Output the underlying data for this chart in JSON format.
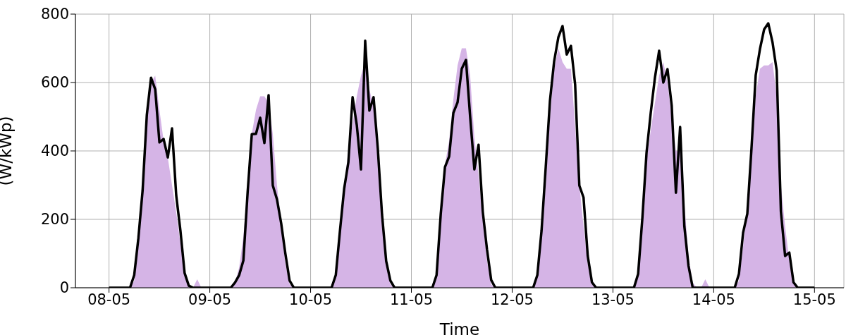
{
  "chart_data": {
    "type": "line",
    "xlabel": "Time",
    "ylabel": "(W/kWp)",
    "xlim": [
      "--05-07T16:00",
      "--05-15T07:00"
    ],
    "ylim": [
      0,
      800
    ],
    "xticks": [
      {
        "value": "--05-08",
        "label": "08-05"
      },
      {
        "value": "--05-09",
        "label": "09-05"
      },
      {
        "value": "--05-10",
        "label": "10-05"
      },
      {
        "value": "--05-11",
        "label": "11-05"
      },
      {
        "value": "--05-12",
        "label": "12-05"
      },
      {
        "value": "--05-13",
        "label": "13-05"
      },
      {
        "value": "--05-14",
        "label": "14-05"
      },
      {
        "value": "--05-15",
        "label": "15-05"
      }
    ],
    "yticks": [
      0,
      200,
      400,
      600,
      800
    ],
    "grid": true,
    "series": [
      {
        "type": "area",
        "color": "#d5b4e6",
        "x": [
          "--05-08T00:00",
          "--05-08T05:00",
          "--05-08T06:00",
          "--05-08T07:00",
          "--05-08T08:00",
          "--05-08T09:00",
          "--05-08T10:00",
          "--05-08T11:00",
          "--05-08T12:00",
          "--05-08T13:00",
          "--05-08T14:00",
          "--05-08T15:00",
          "--05-08T16:00",
          "--05-08T17:00",
          "--05-08T18:00",
          "--05-08T19:00",
          "--05-08T20:00",
          "--05-08T21:00",
          "--05-08T22:00",
          "--05-09T05:00",
          "--05-09T06:00",
          "--05-09T07:00",
          "--05-09T08:00",
          "--05-09T09:00",
          "--05-09T10:00",
          "--05-09T11:00",
          "--05-09T12:00",
          "--05-09T13:00",
          "--05-09T14:00",
          "--05-09T15:00",
          "--05-09T16:00",
          "--05-09T17:00",
          "--05-09T18:00",
          "--05-09T19:00",
          "--05-09T20:00",
          "--05-10T05:00",
          "--05-10T06:00",
          "--05-10T07:00",
          "--05-10T08:00",
          "--05-10T09:00",
          "--05-10T10:00",
          "--05-10T11:00",
          "--05-10T12:00",
          "--05-10T13:00",
          "--05-10T14:00",
          "--05-10T15:00",
          "--05-10T16:00",
          "--05-10T17:00",
          "--05-10T18:00",
          "--05-10T19:00",
          "--05-10T20:00",
          "--05-11T05:00",
          "--05-11T06:00",
          "--05-11T07:00",
          "--05-11T08:00",
          "--05-11T09:00",
          "--05-11T10:00",
          "--05-11T11:00",
          "--05-11T12:00",
          "--05-11T13:00",
          "--05-11T14:00",
          "--05-11T15:00",
          "--05-11T16:00",
          "--05-11T17:00",
          "--05-11T18:00",
          "--05-11T19:00",
          "--05-11T20:00",
          "--05-12T05:00",
          "--05-12T06:00",
          "--05-12T07:00",
          "--05-12T08:00",
          "--05-12T09:00",
          "--05-12T10:00",
          "--05-12T11:00",
          "--05-12T12:00",
          "--05-12T13:00",
          "--05-12T14:00",
          "--05-12T15:00",
          "--05-12T16:00",
          "--05-12T17:00",
          "--05-12T18:00",
          "--05-12T19:00",
          "--05-12T20:00",
          "--05-13T05:00",
          "--05-13T06:00",
          "--05-13T07:00",
          "--05-13T08:00",
          "--05-13T09:00",
          "--05-13T10:00",
          "--05-13T11:00",
          "--05-13T12:00",
          "--05-13T13:00",
          "--05-13T14:00",
          "--05-13T15:00",
          "--05-13T16:00",
          "--05-13T17:00",
          "--05-13T18:00",
          "--05-13T19:00",
          "--05-13T20:00",
          "--05-13T21:00",
          "--05-13T22:00",
          "--05-13T23:00",
          "--05-14T05:00",
          "--05-14T06:00",
          "--05-14T07:00",
          "--05-14T08:00",
          "--05-14T09:00",
          "--05-14T10:00",
          "--05-14T11:00",
          "--05-14T12:00",
          "--05-14T13:00",
          "--05-14T14:00",
          "--05-14T15:00",
          "--05-14T16:00",
          "--05-14T17:00",
          "--05-14T18:00",
          "--05-14T19:00",
          "--05-14T20:00",
          "--05-15T00:00"
        ],
        "values": [
          0,
          0,
          20,
          120,
          280,
          480,
          600,
          620,
          520,
          430,
          380,
          300,
          220,
          130,
          40,
          10,
          0,
          25,
          0,
          0,
          15,
          60,
          150,
          300,
          450,
          520,
          560,
          560,
          540,
          450,
          300,
          180,
          70,
          10,
          0,
          0,
          30,
          170,
          300,
          400,
          480,
          560,
          620,
          660,
          580,
          530,
          420,
          250,
          80,
          10,
          0,
          0,
          30,
          200,
          360,
          430,
          550,
          650,
          700,
          700,
          620,
          440,
          330,
          200,
          80,
          10,
          0,
          0,
          30,
          150,
          300,
          500,
          640,
          700,
          660,
          640,
          640,
          470,
          300,
          180,
          70,
          10,
          0,
          0,
          30,
          200,
          370,
          460,
          540,
          620,
          660,
          600,
          500,
          400,
          400,
          250,
          90,
          15,
          0,
          0,
          25,
          0,
          0,
          20,
          120,
          240,
          400,
          560,
          640,
          650,
          650,
          660,
          560,
          300,
          180,
          80,
          20,
          0,
          0
        ]
      },
      {
        "color": "#000000",
        "x": [
          "--05-08T00:00",
          "--05-08T05:00",
          "--05-08T06:00",
          "--05-08T07:00",
          "--05-08T08:00",
          "--05-08T09:00",
          "--05-08T10:00",
          "--05-08T11:00",
          "--05-08T12:00",
          "--05-08T13:00",
          "--05-08T14:00",
          "--05-08T15:00",
          "--05-08T16:00",
          "--05-08T17:00",
          "--05-08T18:00",
          "--05-08T19:00",
          "--05-08T20:00",
          "--05-09T05:00",
          "--05-09T06:00",
          "--05-09T07:00",
          "--05-09T08:00",
          "--05-09T09:00",
          "--05-09T10:00",
          "--05-09T11:00",
          "--05-09T12:00",
          "--05-09T13:00",
          "--05-09T14:00",
          "--05-09T15:00",
          "--05-09T16:00",
          "--05-09T17:00",
          "--05-09T18:00",
          "--05-09T19:00",
          "--05-09T20:00",
          "--05-10T05:00",
          "--05-10T06:00",
          "--05-10T07:00",
          "--05-10T08:00",
          "--05-10T09:00",
          "--05-10T10:00",
          "--05-10T11:00",
          "--05-10T12:00",
          "--05-10T13:00",
          "--05-10T14:00",
          "--05-10T15:00",
          "--05-10T16:00",
          "--05-10T17:00",
          "--05-10T18:00",
          "--05-10T19:00",
          "--05-10T20:00",
          "--05-11T05:00",
          "--05-11T06:00",
          "--05-11T07:00",
          "--05-11T08:00",
          "--05-11T09:00",
          "--05-11T10:00",
          "--05-11T11:00",
          "--05-11T12:00",
          "--05-11T13:00",
          "--05-11T14:00",
          "--05-11T15:00",
          "--05-11T16:00",
          "--05-11T17:00",
          "--05-11T18:00",
          "--05-11T19:00",
          "--05-11T20:00",
          "--05-12T05:00",
          "--05-12T06:00",
          "--05-12T07:00",
          "--05-12T08:00",
          "--05-12T09:00",
          "--05-12T10:00",
          "--05-12T11:00",
          "--05-12T12:00",
          "--05-12T13:00",
          "--05-12T14:00",
          "--05-12T15:00",
          "--05-12T16:00",
          "--05-12T17:00",
          "--05-12T18:00",
          "--05-12T19:00",
          "--05-12T20:00",
          "--05-13T05:00",
          "--05-13T06:00",
          "--05-13T07:00",
          "--05-13T08:00",
          "--05-13T09:00",
          "--05-13T10:00",
          "--05-13T11:00",
          "--05-13T12:00",
          "--05-13T13:00",
          "--05-13T14:00",
          "--05-13T15:00",
          "--05-13T16:00",
          "--05-13T17:00",
          "--05-13T18:00",
          "--05-13T19:00",
          "--05-14T05:00",
          "--05-14T06:00",
          "--05-14T07:00",
          "--05-14T08:00",
          "--05-14T09:00",
          "--05-14T10:00",
          "--05-14T11:00",
          "--05-14T12:00",
          "--05-14T13:00",
          "--05-14T14:00",
          "--05-14T15:00",
          "--05-14T16:00",
          "--05-14T17:00",
          "--05-14T18:00",
          "--05-14T19:00",
          "--05-14T20:00",
          "--05-15T00:00"
        ],
        "values": [
          0,
          0,
          37,
          146,
          285,
          505,
          614,
          580,
          425,
          435,
          381,
          466,
          270,
          167,
          43,
          6,
          0,
          0,
          15,
          37,
          80,
          278,
          449,
          450,
          497,
          423,
          563,
          299,
          258,
          188,
          99,
          21,
          0,
          0,
          37,
          167,
          290,
          367,
          557,
          476,
          346,
          722,
          518,
          557,
          408,
          216,
          78,
          21,
          0,
          0,
          37,
          216,
          353,
          384,
          511,
          542,
          640,
          666,
          500,
          346,
          418,
          223,
          113,
          23,
          0,
          0,
          37,
          167,
          353,
          546,
          662,
          732,
          765,
          682,
          707,
          594,
          299,
          264,
          93,
          16,
          0,
          0,
          40,
          202,
          394,
          511,
          614,
          693,
          600,
          639,
          532,
          278,
          470,
          181,
          64,
          0,
          0,
          40,
          161,
          216,
          408,
          621,
          697,
          755,
          773,
          718,
          635,
          223,
          93,
          103,
          16,
          0,
          0
        ]
      }
    ]
  }
}
